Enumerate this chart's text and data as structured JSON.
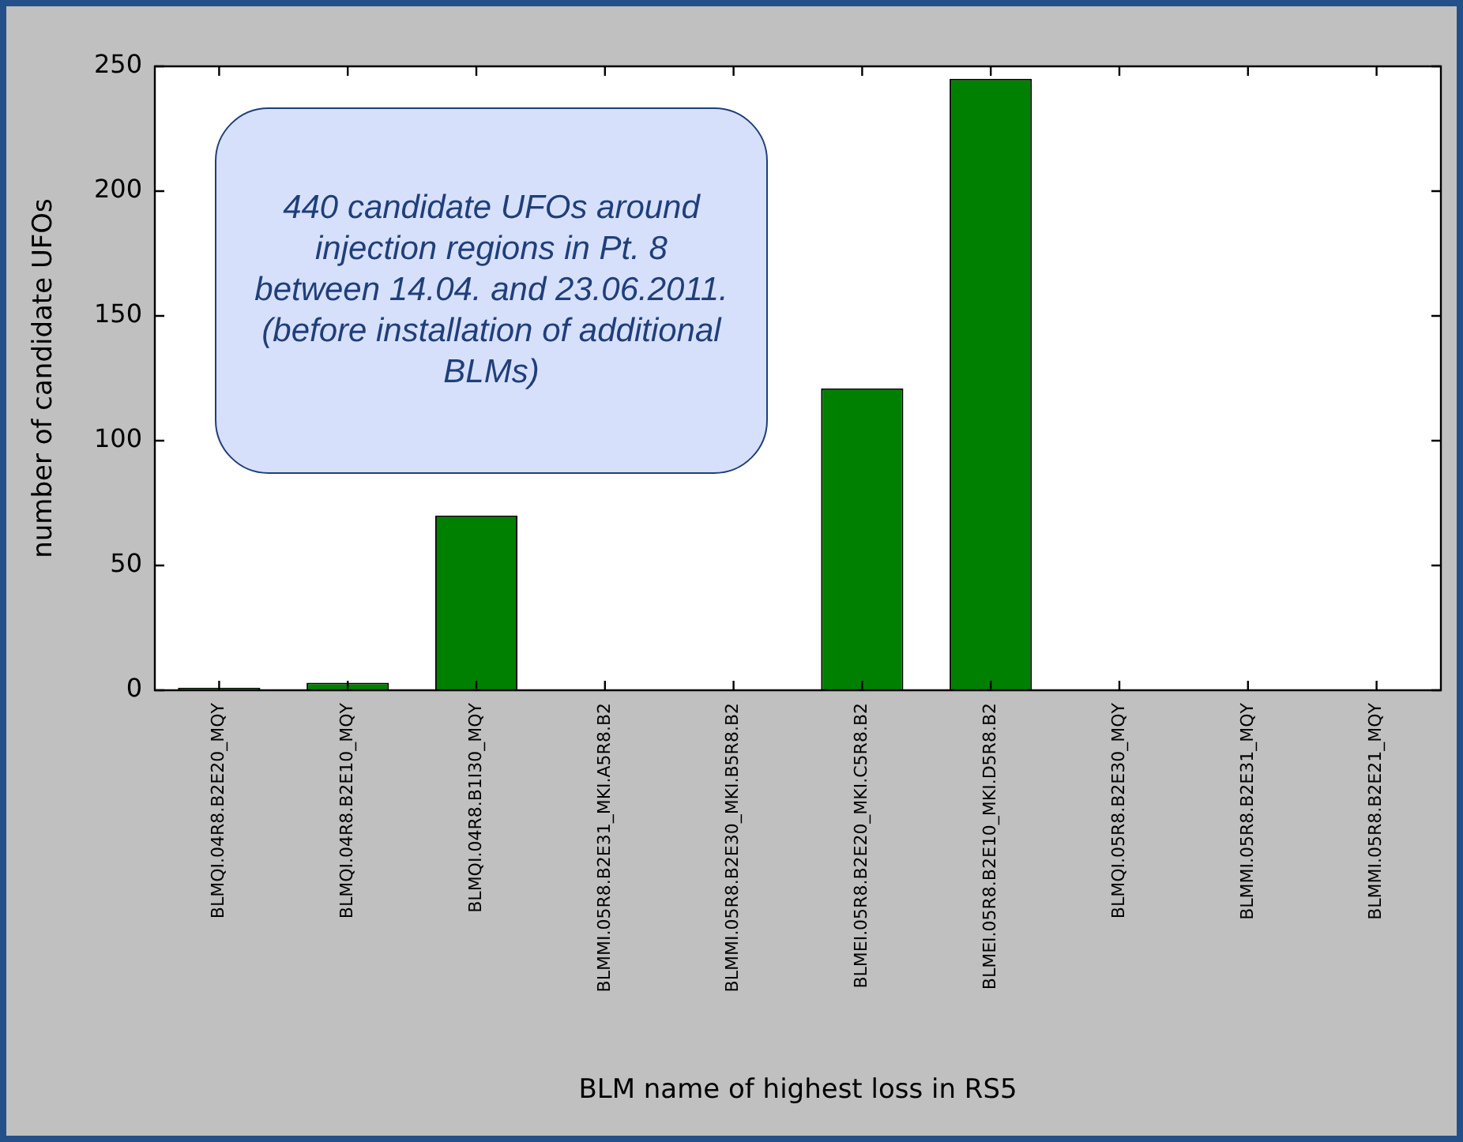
{
  "chart_data": {
    "type": "bar",
    "xlabel": "BLM name of highest loss in RS5",
    "ylabel": "number of candidate UFOs",
    "categories": [
      "BLMQI.04R8.B2E20_MQY",
      "BLMQI.04R8.B2E10_MQY",
      "BLMQI.04R8.B1I30_MQY",
      "BLMMI.05R8.B2E31_MKI.A5R8.B2",
      "BLMMI.05R8.B2E30_MKI.B5R8.B2",
      "BLMEI.05R8.B2E20_MKI.C5R8.B2",
      "BLMEI.05R8.B2E10_MKI.D5R8.B2",
      "BLMQI.05R8.B2E30_MQY",
      "BLMMI.05R8.B2E31_MQY",
      "BLMMI.05R8.B2E21_MQY"
    ],
    "values": [
      1,
      3,
      70,
      0,
      0,
      121,
      245,
      0,
      0,
      0
    ],
    "color": "#008000",
    "ylim": [
      0,
      250
    ],
    "yticks": [
      0,
      50,
      100,
      150,
      200,
      250
    ],
    "grid": false,
    "legend": false,
    "annotations": [
      "440 candidate UFOs around injection regions in Pt. 8 between 14.04. and 23.06.2011. (before installation of additional BLMs)"
    ]
  }
}
